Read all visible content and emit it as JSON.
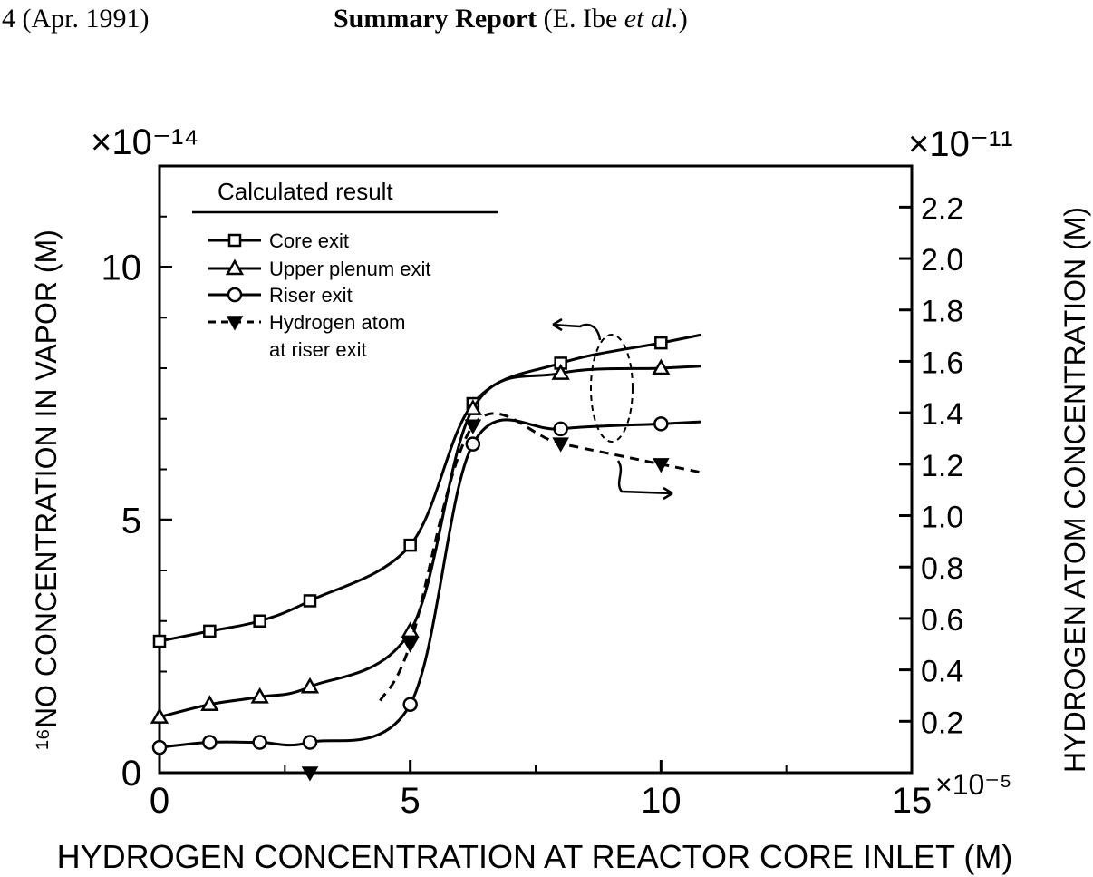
{
  "header": {
    "page_ref": "4 (Apr. 1991)",
    "title_bold": "Summary Report",
    "title_rest_prefix": " (E. Ibe ",
    "title_italic": "et al.",
    "title_rest_suffix": ")"
  },
  "chart_data": {
    "type": "line",
    "xlabel": "HYDROGEN CONCENTRATION AT REACTOR CORE INLET (M)",
    "x_multiplier": "×10⁻⁵",
    "ylabel_left": "¹⁶NO CONCENTRATION IN VAPOR (M)",
    "y_left_multiplier": "×10⁻¹⁴",
    "ylabel_right": "HYDROGEN ATOM CONCENTRATION (M)",
    "y_right_multiplier": "×10⁻¹¹",
    "xlim": [
      0,
      15
    ],
    "ylim_left": [
      0,
      12
    ],
    "ylim_right": [
      0,
      2.36
    ],
    "x_ticks": [
      0,
      5,
      10,
      15
    ],
    "x_tick_labels": [
      "0",
      "5",
      "10",
      "15"
    ],
    "y_left_ticks": [
      0,
      5,
      10
    ],
    "y_left_tick_labels": [
      "0",
      "5",
      "10"
    ],
    "y_right_ticks": [
      0.2,
      0.4,
      0.6,
      0.8,
      1.0,
      1.2,
      1.4,
      1.6,
      1.8,
      2.0,
      2.2
    ],
    "y_right_tick_labels": [
      "0.2",
      "0.4",
      "0.6",
      "0.8",
      "1.0",
      "1.2",
      "1.4",
      "1.6",
      "1.8",
      "2.0",
      "2.2"
    ],
    "legend_title": "Calculated result",
    "legend_placement": "top-left",
    "grid": false,
    "series": [
      {
        "name": "Core exit",
        "axis": "left",
        "marker": "square",
        "dashed": false,
        "x": [
          0,
          1,
          2,
          3,
          5,
          6.25,
          8,
          10
        ],
        "y": [
          2.6,
          2.8,
          3.0,
          3.4,
          4.5,
          7.3,
          8.1,
          8.5
        ]
      },
      {
        "name": "Upper plenum exit",
        "axis": "left",
        "marker": "triangle",
        "dashed": false,
        "x": [
          0,
          1,
          2,
          3,
          5,
          6.25,
          8,
          10
        ],
        "y": [
          1.1,
          1.35,
          1.5,
          1.7,
          2.8,
          7.2,
          7.9,
          8.0
        ]
      },
      {
        "name": "Riser exit",
        "axis": "left",
        "marker": "circle",
        "dashed": false,
        "x": [
          0,
          1,
          2,
          3,
          5,
          6.25,
          8,
          10
        ],
        "y": [
          0.5,
          0.6,
          0.6,
          0.6,
          1.35,
          6.5,
          6.8,
          6.9
        ]
      },
      {
        "name": "Hydrogen atom at riser exit",
        "axis": "right",
        "marker": "triangle-down-filled",
        "dashed": true,
        "x": [
          3,
          5,
          6.25,
          8,
          10
        ],
        "y": [
          0.0,
          0.5,
          1.35,
          1.28,
          1.2
        ]
      }
    ],
    "legend_entries": [
      "Core exit",
      "Upper plenum exit",
      "Riser exit",
      "Hydrogen atom",
      "at riser exit"
    ]
  }
}
